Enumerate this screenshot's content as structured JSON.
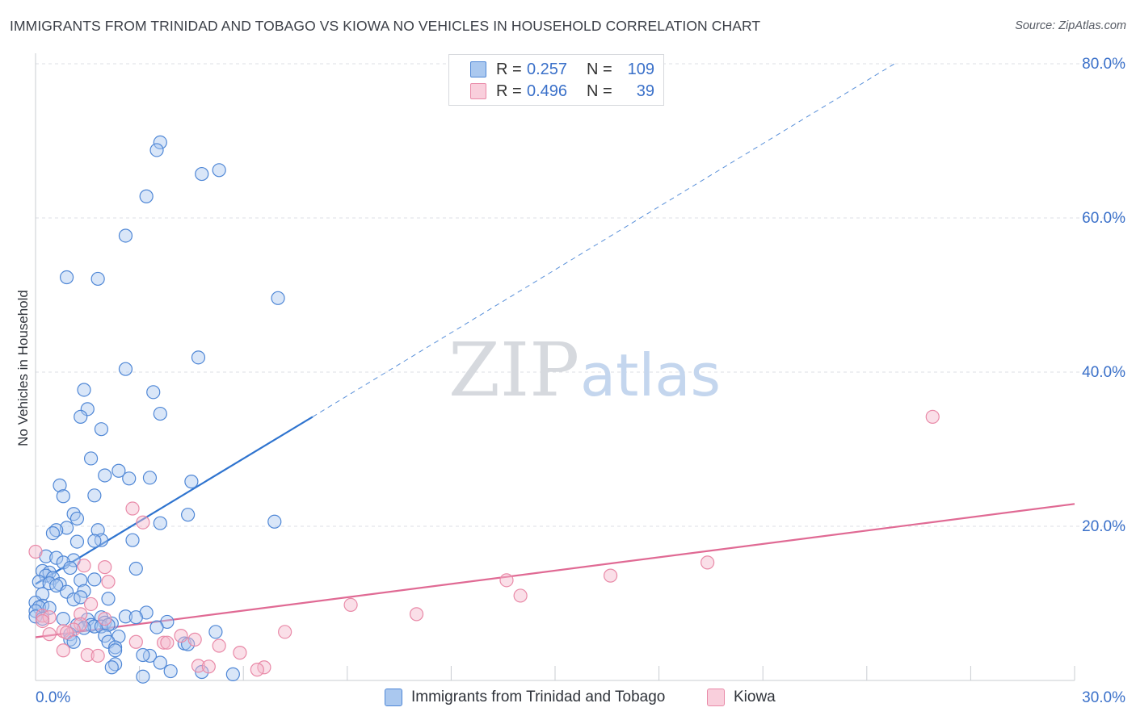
{
  "header": {
    "title": "IMMIGRANTS FROM TRINIDAD AND TOBAGO VS KIOWA NO VEHICLES IN HOUSEHOLD CORRELATION CHART",
    "source": "Source: ZipAtlas.com"
  },
  "legend": {
    "rows": [
      {
        "r_label": "R =",
        "r_value": "0.257",
        "n_label": "N =",
        "n_value": "109"
      },
      {
        "r_label": "R =",
        "r_value": "0.496",
        "n_label": "N =",
        "n_value": "39"
      }
    ]
  },
  "watermark": {
    "zip": "ZIP",
    "atlas": "atlas"
  },
  "colors": {
    "blue_fill": "#aac8ef",
    "blue_stroke": "#4f87d6",
    "blue_line": "#2f74cf",
    "pink_fill": "#f5b9cc",
    "pink_stroke": "#e98aa8",
    "pink_line": "#e06a94",
    "axis_label": "#3a70c9",
    "grid": "#dcdfe4"
  },
  "chart_data": {
    "type": "scatter",
    "title": "IMMIGRANTS FROM TRINIDAD AND TOBAGO VS KIOWA NO VEHICLES IN HOUSEHOLD CORRELATION CHART",
    "xlabel": "",
    "ylabel": "No Vehicles in Household",
    "xlim": [
      0,
      30
    ],
    "ylim": [
      0,
      80
    ],
    "x_tick_labels": [
      "0.0%",
      "30.0%"
    ],
    "y_tick_labels": [
      "20.0%",
      "40.0%",
      "60.0%",
      "80.0%"
    ],
    "y_ticks": [
      20,
      40,
      60,
      80
    ],
    "x_ticks": [
      0,
      3,
      6,
      9,
      12,
      15,
      18,
      21,
      24,
      27,
      30
    ],
    "grid": true,
    "legend_position": "top-center",
    "series": [
      {
        "name": "Immigrants from Trinidad and Tobago",
        "color": "blue",
        "trend": {
          "x0": 0,
          "y0": 12.5,
          "x1": 8.0,
          "y1": 34.2,
          "dashed_to_x": 24.8,
          "dashed_to_y": 80.0
        },
        "points": [
          [
            3.6,
            69.8
          ],
          [
            3.5,
            68.8
          ],
          [
            5.3,
            66.2
          ],
          [
            4.8,
            65.7
          ],
          [
            3.2,
            62.8
          ],
          [
            2.6,
            57.7
          ],
          [
            0.9,
            52.3
          ],
          [
            1.8,
            52.1
          ],
          [
            7.0,
            49.6
          ],
          [
            4.7,
            41.9
          ],
          [
            2.6,
            40.4
          ],
          [
            3.4,
            37.4
          ],
          [
            1.4,
            37.7
          ],
          [
            1.5,
            35.2
          ],
          [
            3.6,
            34.6
          ],
          [
            1.3,
            34.2
          ],
          [
            1.9,
            32.6
          ],
          [
            1.6,
            28.8
          ],
          [
            2.4,
            27.2
          ],
          [
            2.0,
            26.6
          ],
          [
            3.3,
            26.3
          ],
          [
            2.7,
            26.2
          ],
          [
            4.5,
            25.8
          ],
          [
            0.7,
            25.3
          ],
          [
            0.8,
            23.9
          ],
          [
            1.7,
            24.0
          ],
          [
            4.4,
            21.5
          ],
          [
            1.1,
            21.6
          ],
          [
            1.2,
            21.0
          ],
          [
            6.9,
            20.6
          ],
          [
            3.6,
            20.4
          ],
          [
            0.9,
            19.8
          ],
          [
            0.6,
            19.5
          ],
          [
            1.8,
            19.5
          ],
          [
            0.5,
            19.1
          ],
          [
            2.8,
            18.2
          ],
          [
            1.9,
            18.2
          ],
          [
            1.7,
            18.1
          ],
          [
            1.2,
            18.0
          ],
          [
            0.3,
            16.1
          ],
          [
            0.6,
            15.9
          ],
          [
            1.1,
            15.6
          ],
          [
            0.8,
            15.3
          ],
          [
            1.0,
            14.6
          ],
          [
            2.9,
            14.5
          ],
          [
            0.2,
            14.2
          ],
          [
            0.4,
            14.0
          ],
          [
            0.3,
            13.6
          ],
          [
            0.5,
            13.3
          ],
          [
            1.3,
            13.0
          ],
          [
            1.7,
            13.1
          ],
          [
            0.1,
            12.8
          ],
          [
            0.4,
            12.6
          ],
          [
            0.7,
            12.5
          ],
          [
            0.6,
            12.3
          ],
          [
            1.4,
            11.6
          ],
          [
            0.9,
            11.5
          ],
          [
            0.2,
            11.2
          ],
          [
            1.1,
            10.5
          ],
          [
            1.3,
            10.8
          ],
          [
            2.1,
            10.6
          ],
          [
            0.0,
            10.1
          ],
          [
            0.2,
            9.7
          ],
          [
            0.1,
            9.5
          ],
          [
            0.4,
            9.4
          ],
          [
            0.0,
            9.0
          ],
          [
            3.2,
            8.8
          ],
          [
            2.6,
            8.3
          ],
          [
            2.9,
            8.2
          ],
          [
            0.0,
            8.3
          ],
          [
            0.2,
            8.0
          ],
          [
            0.8,
            8.0
          ],
          [
            1.9,
            8.2
          ],
          [
            1.5,
            7.9
          ],
          [
            3.8,
            7.6
          ],
          [
            2.0,
            7.5
          ],
          [
            2.2,
            7.4
          ],
          [
            1.6,
            7.2
          ],
          [
            1.7,
            7.0
          ],
          [
            1.9,
            7.0
          ],
          [
            2.1,
            7.2
          ],
          [
            3.5,
            6.9
          ],
          [
            1.2,
            7.2
          ],
          [
            1.4,
            6.8
          ],
          [
            5.2,
            6.3
          ],
          [
            1.0,
            6.0
          ],
          [
            2.0,
            5.8
          ],
          [
            2.4,
            5.7
          ],
          [
            1.0,
            5.3
          ],
          [
            1.1,
            5.0
          ],
          [
            2.1,
            5.0
          ],
          [
            4.3,
            4.8
          ],
          [
            4.4,
            4.7
          ],
          [
            2.3,
            4.3
          ],
          [
            2.3,
            3.9
          ],
          [
            3.3,
            3.2
          ],
          [
            3.1,
            3.3
          ],
          [
            3.6,
            2.3
          ],
          [
            2.3,
            2.1
          ],
          [
            2.2,
            1.7
          ],
          [
            3.9,
            1.2
          ],
          [
            4.8,
            1.1
          ],
          [
            5.7,
            0.8
          ],
          [
            3.1,
            0.5
          ]
        ]
      },
      {
        "name": "Kiowa",
        "color": "pink",
        "trend": {
          "x0": 0,
          "y0": 5.6,
          "x1": 30,
          "y1": 22.9
        },
        "points": [
          [
            25.9,
            34.2
          ],
          [
            2.8,
            22.3
          ],
          [
            3.1,
            20.5
          ],
          [
            0.0,
            16.7
          ],
          [
            19.4,
            15.3
          ],
          [
            1.4,
            14.9
          ],
          [
            2.0,
            14.7
          ],
          [
            16.6,
            13.6
          ],
          [
            13.6,
            13.0
          ],
          [
            2.1,
            12.8
          ],
          [
            14.0,
            11.0
          ],
          [
            9.1,
            9.8
          ],
          [
            1.6,
            9.9
          ],
          [
            11.0,
            8.6
          ],
          [
            0.2,
            8.4
          ],
          [
            0.4,
            8.2
          ],
          [
            1.3,
            8.6
          ],
          [
            2.0,
            8.0
          ],
          [
            0.2,
            7.7
          ],
          [
            1.3,
            7.3
          ],
          [
            1.1,
            6.6
          ],
          [
            0.8,
            6.4
          ],
          [
            0.9,
            6.2
          ],
          [
            7.2,
            6.3
          ],
          [
            0.4,
            6.0
          ],
          [
            4.2,
            5.8
          ],
          [
            4.6,
            5.3
          ],
          [
            2.9,
            5.0
          ],
          [
            3.7,
            4.9
          ],
          [
            3.8,
            4.9
          ],
          [
            5.3,
            4.5
          ],
          [
            0.8,
            3.9
          ],
          [
            5.9,
            3.6
          ],
          [
            1.5,
            3.3
          ],
          [
            1.8,
            3.2
          ],
          [
            4.7,
            1.9
          ],
          [
            5.0,
            1.8
          ],
          [
            6.6,
            1.7
          ],
          [
            6.4,
            1.4
          ]
        ]
      }
    ]
  },
  "bottom_legend": {
    "items": [
      {
        "label": "Immigrants from Trinidad and Tobago"
      },
      {
        "label": "Kiowa"
      }
    ]
  }
}
